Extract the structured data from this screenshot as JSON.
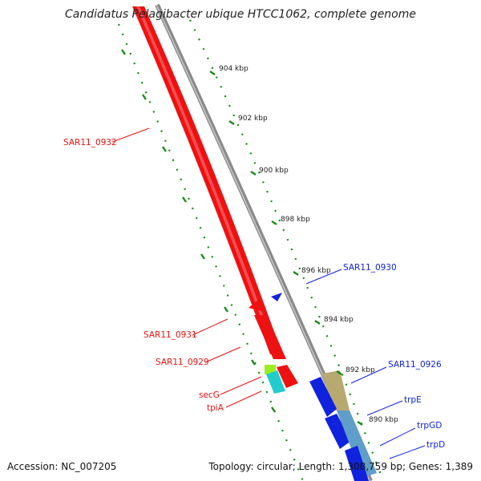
{
  "title": "Candidatus Pelagibacter ubique HTCC1062, complete genome",
  "footer": {
    "accession": "Accession: NC_007205",
    "summary": "Topology: circular; Length: 1,308,759 bp; Genes: 1,389"
  },
  "ticks": [
    "904 kbp",
    "902 kbp",
    "900 kbp",
    "898 kbp",
    "896 kbp",
    "894 kbp",
    "892 kbp",
    "890 kbp"
  ],
  "genes_reverse": [
    "SAR11_0932",
    "SAR11_0931",
    "SAR11_0929",
    "secG",
    "tpiA"
  ],
  "genes_forward": [
    "SAR11_0930",
    "SAR11_0926",
    "trpE",
    "trpGD",
    "trpD"
  ],
  "colors": {
    "reverse_strand": "#ee1111",
    "forward_strand": "#1122dd",
    "backbone": "#8a8a8a",
    "dotted_guide": "#1a8a1a",
    "secG_fill": "#99ee22",
    "tpiA_fill": "#22cccc",
    "khaki_gene": "#b8a970",
    "steel_gene": "#5f9ec8"
  }
}
